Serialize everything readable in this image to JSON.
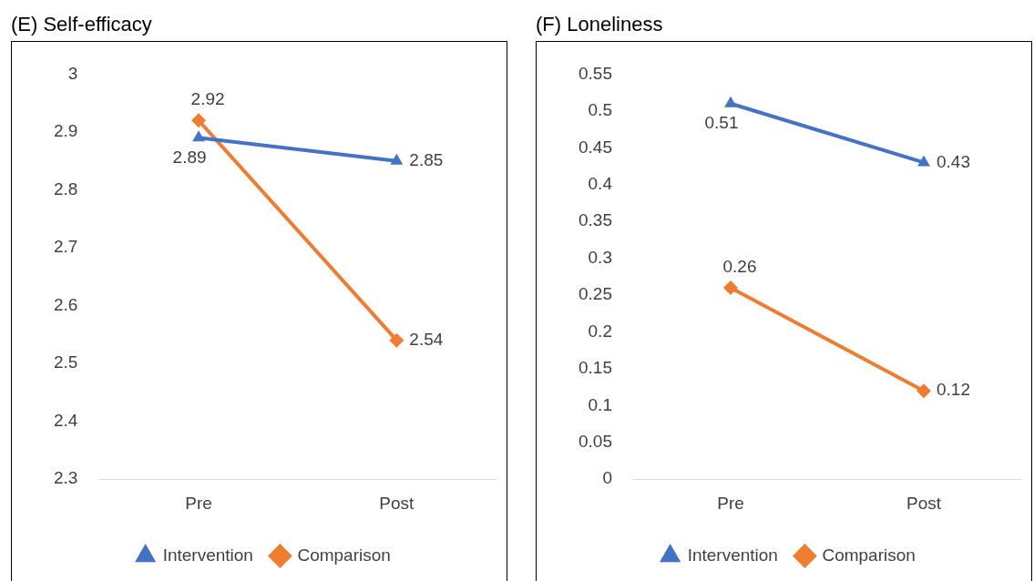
{
  "chart_data": [
    {
      "type": "line",
      "title": "(E) Self-efficacy",
      "categories": [
        "Pre",
        "Post"
      ],
      "series": [
        {
          "name": "Intervention",
          "color": "#4472c4",
          "marker": "triangle",
          "values": [
            2.89,
            2.85
          ]
        },
        {
          "name": "Comparison",
          "color": "#ed7d31",
          "marker": "diamond",
          "values": [
            2.92,
            2.54
          ]
        }
      ],
      "ylim": [
        2.3,
        3
      ],
      "yticks": [
        2.3,
        2.4,
        2.5,
        2.6,
        2.7,
        2.8,
        2.9,
        3
      ],
      "grid": false,
      "legend": "bottom",
      "data_labels": true,
      "line_style": "solid"
    },
    {
      "type": "line",
      "title": "(F) Loneliness",
      "categories": [
        "Pre",
        "Post"
      ],
      "series": [
        {
          "name": "Intervention",
          "color": "#4472c4",
          "marker": "triangle",
          "values": [
            0.51,
            0.43
          ]
        },
        {
          "name": "Comparison",
          "color": "#ed7d31",
          "marker": "diamond",
          "values": [
            0.26,
            0.12
          ]
        }
      ],
      "ylim": [
        0,
        0.55
      ],
      "yticks": [
        0,
        0.05,
        0.1,
        0.15,
        0.2,
        0.25,
        0.3,
        0.35,
        0.4,
        0.45,
        0.5,
        0.55
      ],
      "grid": false,
      "legend": "bottom",
      "data_labels": true,
      "line_style": "solid"
    }
  ]
}
